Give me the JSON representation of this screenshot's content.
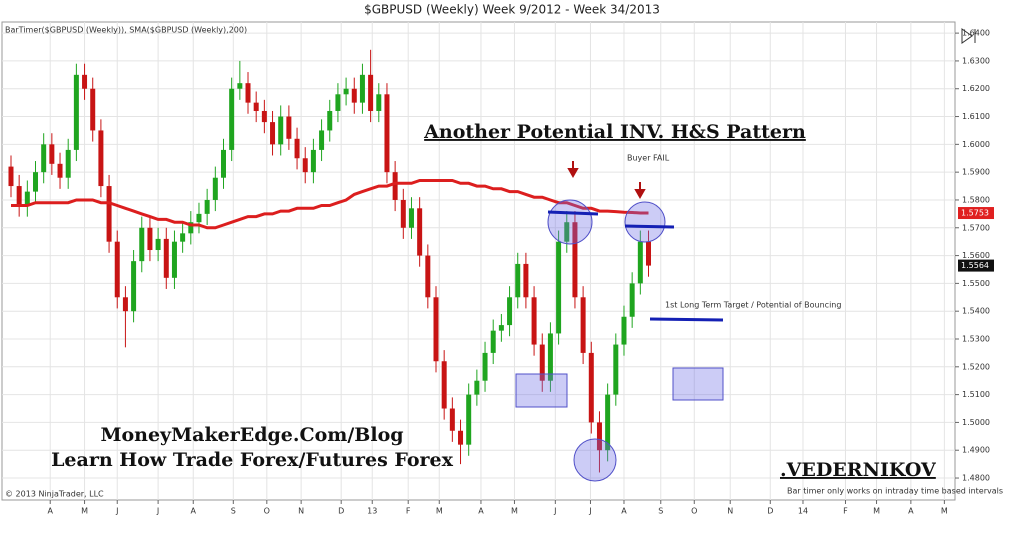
{
  "chart_data": {
    "type": "candlestick",
    "title": "$GBPUSD (Weekly)  Week 9/2012 - Week 34/2013",
    "indicator_label": "BarTimer($GBPUSD (Weekly)), SMA($GBPUSD (Weekly),200)",
    "copyright": "© 2013 NinjaTrader, LLC",
    "up_color": "#1fa51f",
    "down_color": "#c81414",
    "open": [
      1.592,
      1.585,
      1.578,
      1.583,
      1.59,
      1.6,
      1.593,
      1.588,
      1.598,
      1.625,
      1.62,
      1.605,
      1.585,
      1.565,
      1.545,
      1.54,
      1.558,
      1.57,
      1.562,
      1.566,
      1.552,
      1.565,
      1.568,
      1.572,
      1.575,
      1.58,
      1.588,
      1.598,
      1.62,
      1.622,
      1.615,
      1.612,
      1.608,
      1.6,
      1.61,
      1.602,
      1.595,
      1.59,
      1.598,
      1.605,
      1.612,
      1.618,
      1.62,
      1.615,
      1.625,
      1.612,
      1.618,
      1.59,
      1.58,
      1.57,
      1.577,
      1.56,
      1.545,
      1.522,
      1.505,
      1.497,
      1.492,
      1.51,
      1.515,
      1.525,
      1.533,
      1.535,
      1.545,
      1.557,
      1.545,
      1.528,
      1.515,
      1.532,
      1.565,
      1.572,
      1.545,
      1.525,
      1.5,
      1.49,
      1.51,
      1.528,
      1.538,
      1.55,
      1.565
    ],
    "high": [
      1.596,
      1.589,
      1.587,
      1.594,
      1.604,
      1.604,
      1.597,
      1.602,
      1.629,
      1.629,
      1.624,
      1.609,
      1.589,
      1.569,
      1.549,
      1.562,
      1.574,
      1.574,
      1.57,
      1.57,
      1.569,
      1.572,
      1.576,
      1.579,
      1.584,
      1.592,
      1.602,
      1.624,
      1.63,
      1.626,
      1.619,
      1.616,
      1.612,
      1.614,
      1.614,
      1.606,
      1.599,
      1.602,
      1.609,
      1.616,
      1.622,
      1.624,
      1.624,
      1.629,
      1.634,
      1.622,
      1.622,
      1.594,
      1.584,
      1.581,
      1.581,
      1.564,
      1.549,
      1.526,
      1.509,
      1.501,
      1.514,
      1.519,
      1.529,
      1.537,
      1.539,
      1.549,
      1.561,
      1.561,
      1.549,
      1.532,
      1.536,
      1.569,
      1.576,
      1.576,
      1.549,
      1.529,
      1.504,
      1.514,
      1.532,
      1.542,
      1.554,
      1.569,
      1.569
    ],
    "low": [
      1.581,
      1.574,
      1.574,
      1.579,
      1.586,
      1.589,
      1.584,
      1.584,
      1.594,
      1.616,
      1.601,
      1.581,
      1.561,
      1.541,
      1.527,
      1.536,
      1.554,
      1.558,
      1.558,
      1.548,
      1.548,
      1.561,
      1.564,
      1.568,
      1.571,
      1.576,
      1.584,
      1.594,
      1.616,
      1.611,
      1.608,
      1.604,
      1.596,
      1.596,
      1.598,
      1.591,
      1.586,
      1.586,
      1.594,
      1.601,
      1.608,
      1.614,
      1.611,
      1.611,
      1.608,
      1.608,
      1.586,
      1.576,
      1.566,
      1.566,
      1.556,
      1.541,
      1.518,
      1.501,
      1.493,
      1.485,
      1.488,
      1.506,
      1.511,
      1.521,
      1.529,
      1.531,
      1.541,
      1.541,
      1.524,
      1.511,
      1.511,
      1.528,
      1.561,
      1.541,
      1.521,
      1.496,
      1.482,
      1.486,
      1.506,
      1.524,
      1.534,
      1.546,
      1.5524
    ],
    "close": [
      1.585,
      1.578,
      1.583,
      1.59,
      1.6,
      1.593,
      1.588,
      1.598,
      1.625,
      1.62,
      1.605,
      1.585,
      1.565,
      1.545,
      1.54,
      1.558,
      1.57,
      1.562,
      1.566,
      1.552,
      1.565,
      1.568,
      1.572,
      1.575,
      1.58,
      1.588,
      1.598,
      1.62,
      1.622,
      1.615,
      1.612,
      1.608,
      1.6,
      1.61,
      1.602,
      1.595,
      1.59,
      1.598,
      1.605,
      1.612,
      1.618,
      1.62,
      1.615,
      1.625,
      1.612,
      1.618,
      1.59,
      1.58,
      1.57,
      1.577,
      1.56,
      1.545,
      1.522,
      1.505,
      1.497,
      1.492,
      1.51,
      1.515,
      1.525,
      1.533,
      1.535,
      1.545,
      1.557,
      1.545,
      1.528,
      1.515,
      1.532,
      1.565,
      1.572,
      1.545,
      1.525,
      1.5,
      1.49,
      1.51,
      1.528,
      1.538,
      1.55,
      1.565,
      1.5564
    ],
    "sma": {
      "color": "#dc1e1e",
      "values": [
        1.578,
        1.578,
        1.578,
        1.579,
        1.579,
        1.579,
        1.579,
        1.579,
        1.58,
        1.58,
        1.58,
        1.579,
        1.579,
        1.578,
        1.577,
        1.576,
        1.575,
        1.574,
        1.573,
        1.573,
        1.572,
        1.572,
        1.571,
        1.571,
        1.57,
        1.57,
        1.571,
        1.572,
        1.573,
        1.574,
        1.574,
        1.575,
        1.575,
        1.576,
        1.576,
        1.577,
        1.577,
        1.577,
        1.578,
        1.578,
        1.579,
        1.58,
        1.582,
        1.583,
        1.584,
        1.585,
        1.585,
        1.586,
        1.586,
        1.586,
        1.587,
        1.587,
        1.587,
        1.587,
        1.587,
        1.586,
        1.586,
        1.585,
        1.585,
        1.584,
        1.584,
        1.583,
        1.583,
        1.582,
        1.581,
        1.581,
        1.58,
        1.579,
        1.579,
        1.578,
        1.577,
        1.577,
        1.576,
        1.576,
        1.5758,
        1.5756,
        1.5755,
        1.5753,
        1.5753
      ]
    },
    "markers": [
      {
        "value": 1.5753,
        "color": "#e02020"
      },
      {
        "value": 1.5564,
        "color": "#111111"
      }
    ],
    "xlim": [
      -1.1,
      115.5
    ],
    "xticks": [
      {
        "value": 4.8,
        "label": "A"
      },
      {
        "value": 9.0,
        "label": "M"
      },
      {
        "value": 13.0,
        "label": "J"
      },
      {
        "value": 18.0,
        "label": "J"
      },
      {
        "value": 22.3,
        "label": "A"
      },
      {
        "value": 27.2,
        "label": "S"
      },
      {
        "value": 31.3,
        "label": "O"
      },
      {
        "value": 35.5,
        "label": "N"
      },
      {
        "value": 40.4,
        "label": "D"
      },
      {
        "value": 44.2,
        "label": "13"
      },
      {
        "value": 48.6,
        "label": "F"
      },
      {
        "value": 52.4,
        "label": "M"
      },
      {
        "value": 57.5,
        "label": "A"
      },
      {
        "value": 61.6,
        "label": "M"
      },
      {
        "value": 66.6,
        "label": "J"
      },
      {
        "value": 70.9,
        "label": "J"
      },
      {
        "value": 75.0,
        "label": "A"
      },
      {
        "value": 79.5,
        "label": "S"
      },
      {
        "value": 83.6,
        "label": "O"
      },
      {
        "value": 88.0,
        "label": "N"
      },
      {
        "value": 92.9,
        "label": "D"
      },
      {
        "value": 96.9,
        "label": "14"
      },
      {
        "value": 102.1,
        "label": "F"
      },
      {
        "value": 105.9,
        "label": "M"
      },
      {
        "value": 110.1,
        "label": "A"
      },
      {
        "value": 114.2,
        "label": "M"
      }
    ],
    "ylim": [
      1.4721,
      1.644
    ],
    "yticks": [
      {
        "value": 1.48,
        "label": "1.4800"
      },
      {
        "value": 1.49,
        "label": "1.4900"
      },
      {
        "value": 1.5,
        "label": "1.5000"
      },
      {
        "value": 1.51,
        "label": "1.5100"
      },
      {
        "value": 1.52,
        "label": "1.5200"
      },
      {
        "value": 1.53,
        "label": "1.5300"
      },
      {
        "value": 1.54,
        "label": "1.5400"
      },
      {
        "value": 1.55,
        "label": "1.5500"
      },
      {
        "value": 1.56,
        "label": "1.5600"
      },
      {
        "value": 1.57,
        "label": "1.5700"
      },
      {
        "value": 1.58,
        "label": "1.5800"
      },
      {
        "value": 1.59,
        "label": "1.5900"
      },
      {
        "value": 1.6,
        "label": "1.6000"
      },
      {
        "value": 1.61,
        "label": "1.6100"
      },
      {
        "value": 1.62,
        "label": "1.6200"
      },
      {
        "value": 1.63,
        "label": "1.6300"
      },
      {
        "value": 1.64,
        "label": "1.6400"
      }
    ],
    "grid": true,
    "annotations": {
      "pattern": "Another Potential INV. H&S Pattern",
      "buyer_fail": "Buyer FAIL",
      "target": "1st Long Term Target / Potential of Bouncing",
      "site": "MoneyMakerEdge.Com/Blog",
      "promo": "Learn How Trade Forex/Futures Forex",
      "author": ".VEDERNIKOV",
      "bar_timer": "Bar timer only works on intraday time based intervals"
    }
  }
}
